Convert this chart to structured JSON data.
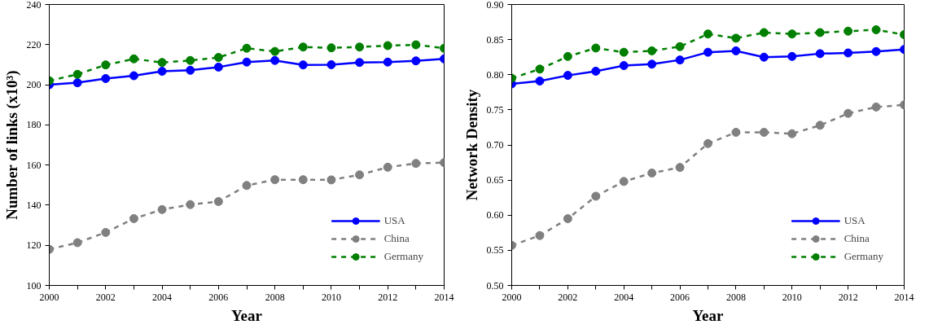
{
  "chart_data": [
    {
      "type": "line",
      "xlabel": "Year",
      "ylabel": "Number of links (x10³)",
      "x": [
        2000,
        2001,
        2002,
        2003,
        2004,
        2005,
        2006,
        2007,
        2008,
        2009,
        2010,
        2011,
        2012,
        2013,
        2014
      ],
      "xlim": [
        2000,
        2014
      ],
      "xticks": [
        2000,
        {
          "value": 2001,
          "label": null
        },
        2002,
        {
          "value": 2003,
          "label": null
        },
        2004,
        {
          "value": 2005,
          "label": null
        },
        2006,
        {
          "value": 2007,
          "label": null
        },
        2008,
        {
          "value": 2009,
          "label": null
        },
        2010,
        {
          "value": 2011,
          "label": null
        },
        2012,
        {
          "value": 2013,
          "label": null
        },
        2014
      ],
      "ylim": [
        100,
        240
      ],
      "yticks": [
        100,
        120,
        140,
        160,
        180,
        200,
        220,
        240
      ],
      "grid": false,
      "legend": "bottom right",
      "marker": "circle",
      "series": [
        {
          "name": "USA",
          "color": "#0000ff",
          "line_style": "solid",
          "values": [
            200,
            201,
            203.1,
            204.5,
            206.7,
            207.2,
            208.8,
            211.3,
            212.1,
            209.9,
            210,
            211.1,
            211.3,
            211.9,
            212.9
          ]
        },
        {
          "name": "China",
          "color": "#808080",
          "line_style": "dashed",
          "values": [
            118,
            121.3,
            126.4,
            133.3,
            137.8,
            140.3,
            141.8,
            149.8,
            152.7,
            152.7,
            152.6,
            155.1,
            158.9,
            160.8,
            161.2
          ]
        },
        {
          "name": "Germany",
          "color": "#007f00",
          "line_style": "dashed",
          "values": [
            202,
            205.2,
            209.9,
            212.9,
            211.1,
            212.1,
            213.6,
            218.2,
            216.6,
            218.8,
            218.4,
            218.8,
            219.5,
            219.9,
            218.2
          ]
        }
      ]
    },
    {
      "type": "line",
      "xlabel": "Year",
      "ylabel": "Network Density",
      "x": [
        2000,
        2001,
        2002,
        2003,
        2004,
        2005,
        2006,
        2007,
        2008,
        2009,
        2010,
        2011,
        2012,
        2013,
        2014
      ],
      "xlim": [
        2000,
        2014
      ],
      "xticks": [
        2000,
        {
          "value": 2001,
          "label": null
        },
        2002,
        {
          "value": 2003,
          "label": null
        },
        2004,
        {
          "value": 2005,
          "label": null
        },
        2006,
        {
          "value": 2007,
          "label": null
        },
        2008,
        {
          "value": 2009,
          "label": null
        },
        2010,
        {
          "value": 2011,
          "label": null
        },
        2012,
        {
          "value": 2013,
          "label": null
        },
        2014
      ],
      "ylim": [
        0.5,
        0.9
      ],
      "yticks": [
        {
          "value": 0.5,
          "label": "0.50"
        },
        0.55,
        {
          "value": 0.6,
          "label": "0.60"
        },
        0.65,
        {
          "value": 0.7,
          "label": "0.70"
        },
        0.75,
        {
          "value": 0.8,
          "label": "0.80"
        },
        0.85,
        {
          "value": 0.9,
          "label": "0.90"
        }
      ],
      "grid": false,
      "legend": "bottom right",
      "marker": "circle",
      "series": [
        {
          "name": "USA",
          "color": "#0000ff",
          "line_style": "solid",
          "values": [
            0.787,
            0.791,
            0.799,
            0.805,
            0.813,
            0.815,
            0.821,
            0.832,
            0.834,
            0.825,
            0.826,
            0.83,
            0.831,
            0.833,
            0.836
          ]
        },
        {
          "name": "China",
          "color": "#808080",
          "line_style": "dashed",
          "values": [
            0.557,
            0.571,
            0.595,
            0.627,
            0.648,
            0.66,
            0.668,
            0.702,
            0.718,
            0.718,
            0.716,
            0.728,
            0.745,
            0.754,
            0.757
          ]
        },
        {
          "name": "Germany",
          "color": "#007f00",
          "line_style": "dashed",
          "values": [
            0.795,
            0.808,
            0.826,
            0.838,
            0.832,
            0.834,
            0.84,
            0.858,
            0.852,
            0.86,
            0.858,
            0.86,
            0.862,
            0.864,
            0.857
          ]
        }
      ]
    }
  ]
}
